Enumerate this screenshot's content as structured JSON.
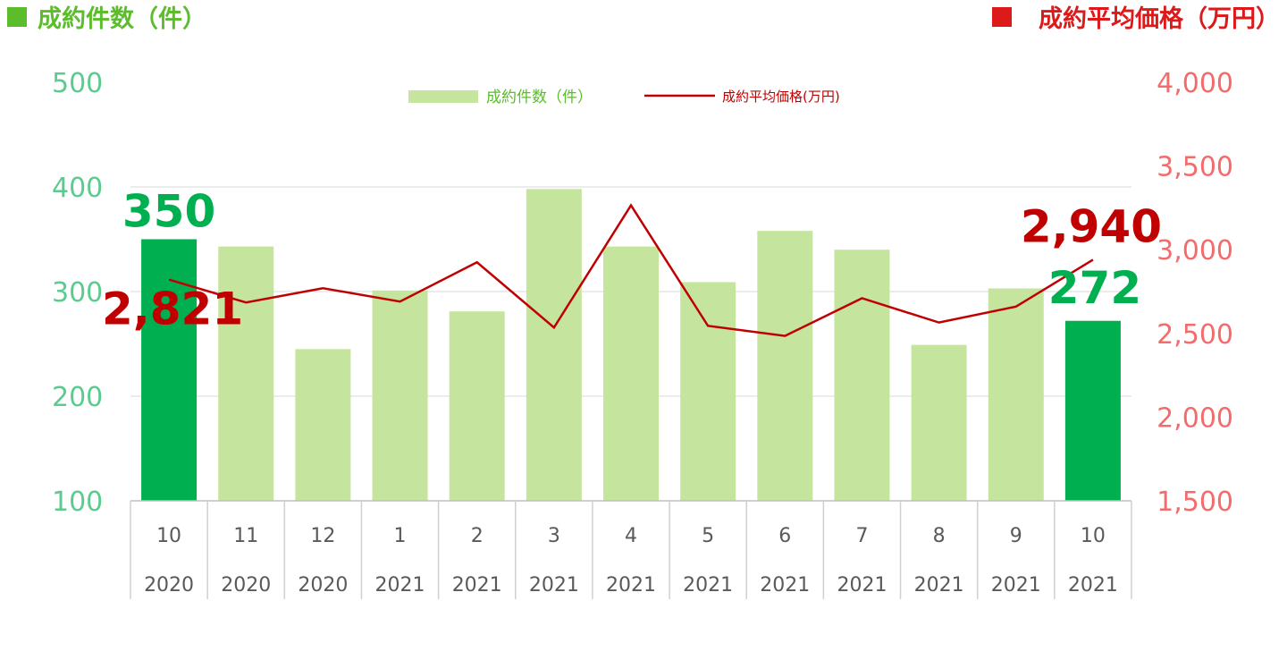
{
  "chart_data": {
    "type": "bar+line",
    "left_title": "成約件数（件）",
    "right_title": "成約平均価格（万円）",
    "legend": {
      "bar_label": "成約件数（件）",
      "line_label": "成約平均価格(万円)"
    },
    "categories": [
      {
        "month": "10",
        "year": "2020"
      },
      {
        "month": "11",
        "year": "2020"
      },
      {
        "month": "12",
        "year": "2020"
      },
      {
        "month": "1",
        "year": "2021"
      },
      {
        "month": "2",
        "year": "2021"
      },
      {
        "month": "3",
        "year": "2021"
      },
      {
        "month": "4",
        "year": "2021"
      },
      {
        "month": "5",
        "year": "2021"
      },
      {
        "month": "6",
        "year": "2021"
      },
      {
        "month": "7",
        "year": "2021"
      },
      {
        "month": "8",
        "year": "2021"
      },
      {
        "month": "9",
        "year": "2021"
      },
      {
        "month": "10",
        "year": "2021"
      }
    ],
    "series": [
      {
        "name": "成約件数（件）",
        "axis": "left",
        "type": "bar",
        "values": [
          350,
          343,
          245,
          301,
          281,
          398,
          343,
          309,
          358,
          340,
          249,
          303,
          272
        ]
      },
      {
        "name": "成約平均価格(万円)",
        "axis": "right",
        "type": "line",
        "values": [
          2821,
          2685,
          2770,
          2690,
          2925,
          2535,
          3265,
          2545,
          2485,
          2710,
          2565,
          2660,
          2940
        ]
      }
    ],
    "left_axis": {
      "min": 100,
      "max": 500,
      "ticks": [
        "100",
        "200",
        "300",
        "400",
        "500"
      ]
    },
    "right_axis": {
      "min": 1500,
      "max": 4000,
      "ticks": [
        "1,500",
        "2,000",
        "2,500",
        "3,000",
        "3,500",
        "4,000"
      ]
    },
    "highlighted_indices": [
      0,
      12
    ],
    "data_labels": {
      "first_count": "350",
      "first_price": "2,821",
      "last_count": "272",
      "last_price": "2,940"
    },
    "colors": {
      "bar": "#c5e59e",
      "bar_highlight": "#00b050",
      "line": "#c00000",
      "left_axis_text": "#5ccb8f",
      "right_axis_text": "#f46b6b",
      "left_title": "#5bbd2b",
      "right_title": "#dd1a1a",
      "count_label": "#00b050",
      "price_label": "#c00000"
    },
    "grid": true
  }
}
